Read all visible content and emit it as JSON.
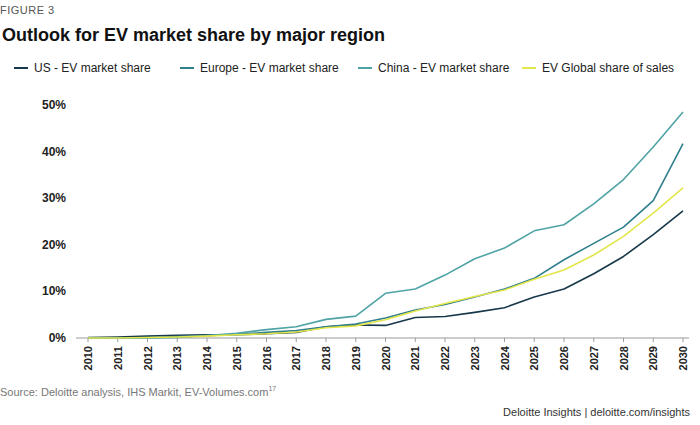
{
  "chart_data": {
    "type": "line",
    "figure_label": "FIGURE 3",
    "title": "Outlook for EV market share by major region",
    "source": "Source: Deloitte analysis, IHS Markit, EV-Volumes.com",
    "source_note": "17",
    "footer": "Deloitte Insights | deloitte.com/insights",
    "legend": "top",
    "grid": false,
    "x": [
      2010,
      2011,
      2012,
      2013,
      2014,
      2015,
      2016,
      2017,
      2018,
      2019,
      2020,
      2021,
      2022,
      2023,
      2024,
      2025,
      2026,
      2027,
      2028,
      2029,
      2030
    ],
    "xlim": [
      2010,
      2030
    ],
    "xticks": [
      2010,
      2011,
      2012,
      2013,
      2014,
      2015,
      2016,
      2017,
      2018,
      2019,
      2020,
      2021,
      2022,
      2023,
      2024,
      2025,
      2026,
      2027,
      2028,
      2029,
      2030
    ],
    "ylim": [
      0,
      50
    ],
    "yticks": [
      {
        "value": 0,
        "label": "0%"
      },
      {
        "value": 10,
        "label": "10%"
      },
      {
        "value": 20,
        "label": "20%"
      },
      {
        "value": 30,
        "label": "30%"
      },
      {
        "value": 40,
        "label": "40%"
      },
      {
        "value": 50,
        "label": "50%"
      }
    ],
    "series": [
      {
        "name": "US - EV market share",
        "color": "#17384a",
        "values": [
          0.1,
          0.2,
          0.4,
          0.6,
          0.7,
          0.7,
          0.9,
          1.2,
          2.4,
          2.8,
          2.7,
          4.4,
          4.6,
          5.5,
          6.5,
          8.8,
          10.5,
          13.8,
          17.5,
          22.2,
          27.3
        ]
      },
      {
        "name": "Europe - EV market share",
        "color": "#2f7f8c",
        "values": [
          0,
          0,
          0.1,
          0.3,
          0.5,
          0.8,
          1.2,
          1.6,
          2.4,
          3.0,
          4.3,
          6.0,
          7.2,
          8.8,
          10.5,
          12.8,
          16.8,
          20.3,
          23.8,
          29.5,
          41.7
        ]
      },
      {
        "name": "China - EV market share",
        "color": "#4fa3a5",
        "values": [
          0,
          0,
          0,
          0.1,
          0.5,
          1.0,
          1.8,
          2.4,
          4.0,
          4.7,
          9.6,
          10.5,
          13.5,
          17.0,
          19.3,
          23.0,
          24.3,
          28.8,
          34.0,
          41.0,
          48.5
        ]
      },
      {
        "name": "EV Global share of sales",
        "color": "#e3e64a",
        "values": [
          0,
          0,
          0.1,
          0.2,
          0.4,
          0.7,
          0.9,
          1.3,
          2.2,
          2.6,
          3.9,
          5.8,
          7.4,
          8.9,
          10.3,
          12.6,
          14.6,
          17.8,
          21.8,
          26.8,
          32.2
        ]
      }
    ]
  }
}
